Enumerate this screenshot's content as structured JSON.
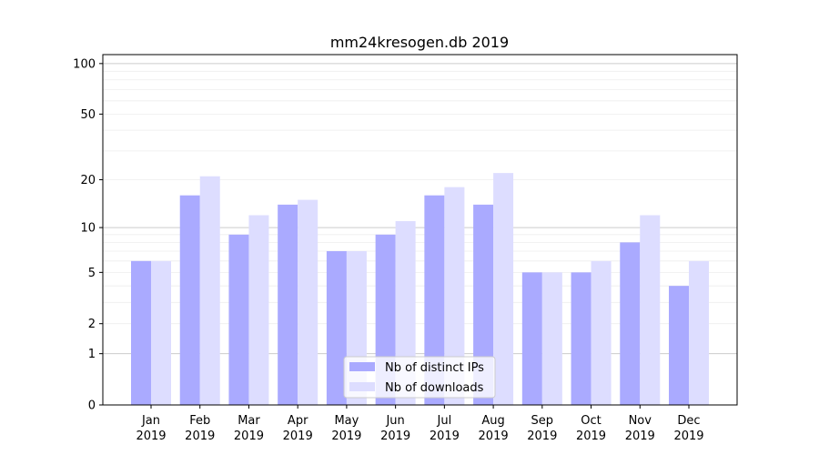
{
  "chart_data": {
    "type": "bar",
    "title": "mm24kresogen.db 2019",
    "xlabel": "",
    "ylabel": "",
    "yscale": "log10(1+y)",
    "ylim": [
      0,
      113
    ],
    "yticks": [
      0,
      1,
      2,
      5,
      10,
      20,
      50,
      100
    ],
    "ytick_labels": [
      "0",
      "1",
      "2",
      "5",
      "10",
      "20",
      "50",
      "100"
    ],
    "categories": [
      "Jan\n2019",
      "Feb\n2019",
      "Mar\n2019",
      "Apr\n2019",
      "May\n2019",
      "Jun\n2019",
      "Jul\n2019",
      "Aug\n2019",
      "Sep\n2019",
      "Oct\n2019",
      "Nov\n2019",
      "Dec\n2019"
    ],
    "series": [
      {
        "name": "Nb of distinct IPs",
        "color": "#aaaaff",
        "values": [
          6,
          16,
          9,
          14,
          7,
          9,
          16,
          14,
          5,
          5,
          8,
          4
        ]
      },
      {
        "name": "Nb of downloads",
        "color": "#ddddff",
        "values": [
          6,
          21,
          12,
          15,
          7,
          11,
          18,
          22,
          5,
          6,
          12,
          6
        ]
      }
    ],
    "legend_position": "bottom-center",
    "grid": true
  }
}
